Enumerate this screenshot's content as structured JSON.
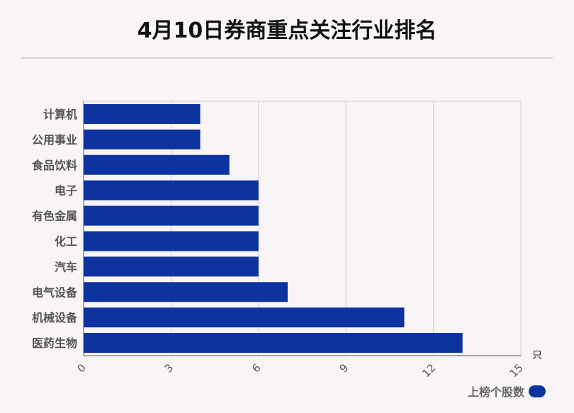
{
  "chart_data": {
    "type": "bar",
    "orientation": "horizontal",
    "title": "4月10日券商重点关注行业排名",
    "categories": [
      "计算机",
      "公用事业",
      "食品饮料",
      "电子",
      "有色金属",
      "化工",
      "汽车",
      "电气设备",
      "机械设备",
      "医药生物"
    ],
    "series": [
      {
        "name": "上榜个股数",
        "values": [
          4,
          4,
          5,
          6,
          6,
          6,
          6,
          7,
          11,
          13
        ],
        "color": "#0d33a0"
      }
    ],
    "xlim": [
      0,
      15
    ],
    "xticks": [
      "0",
      "3",
      "6",
      "9",
      "12",
      "15"
    ],
    "unit": "只",
    "grid": true,
    "legend_position": "bottom-right"
  }
}
